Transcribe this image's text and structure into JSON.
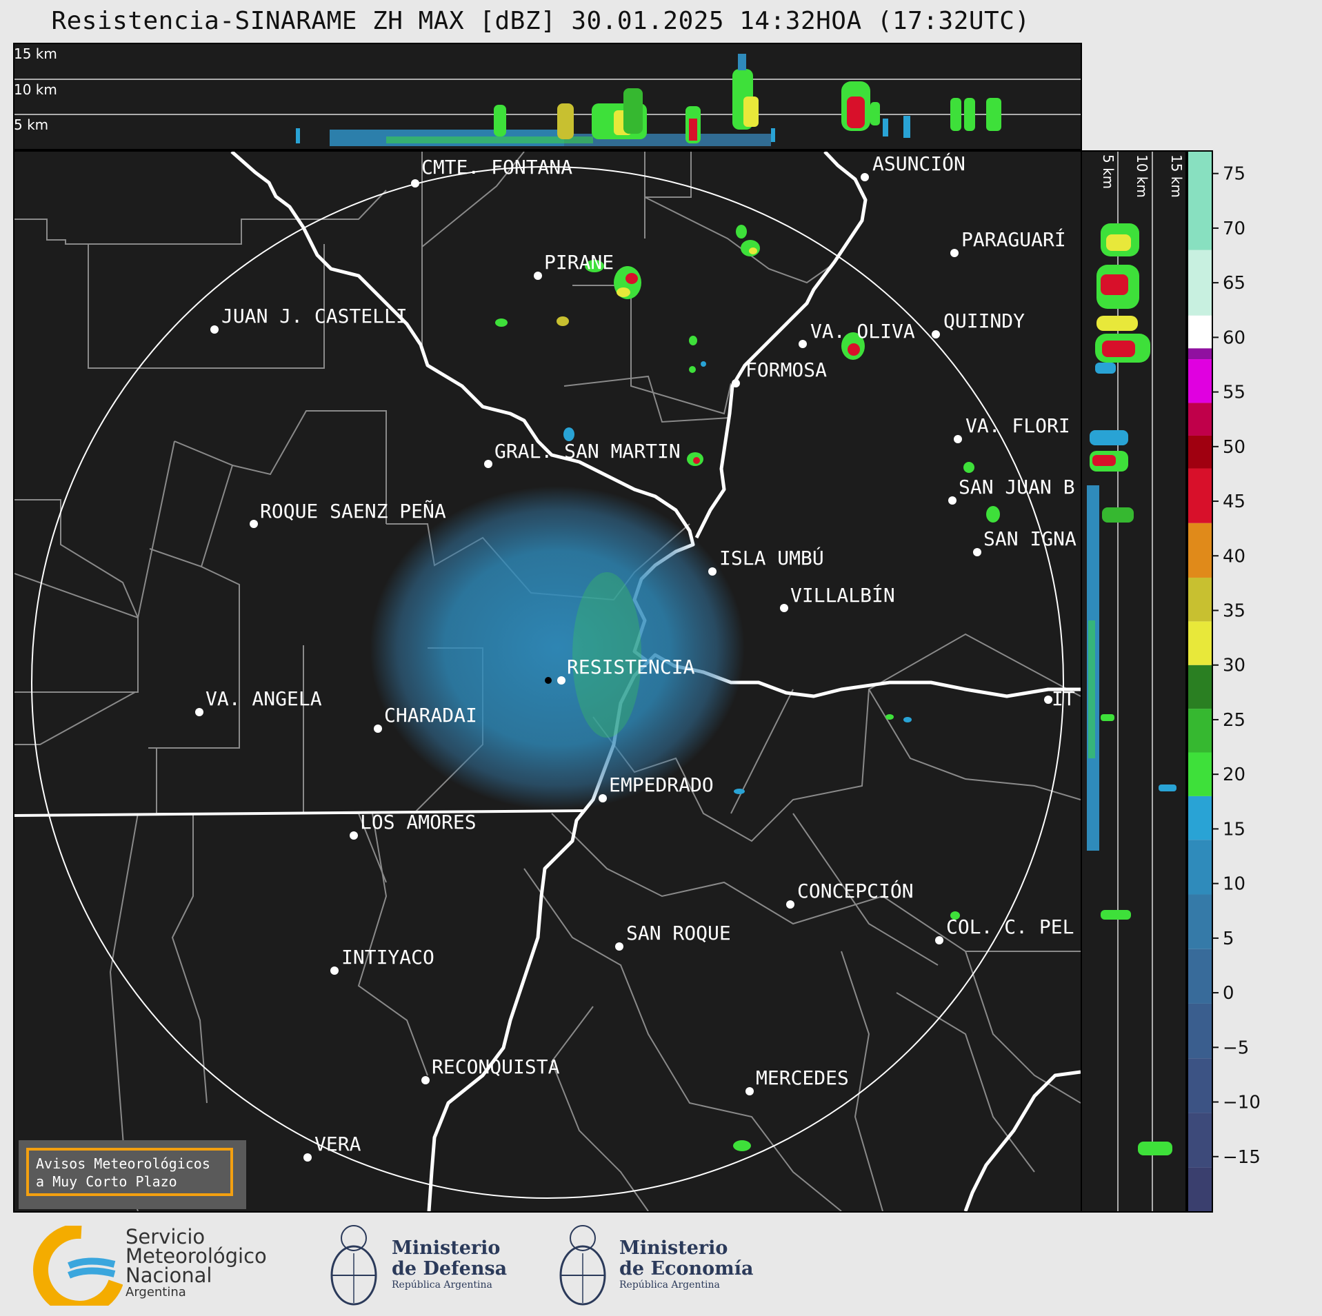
{
  "title": "Resistencia-SINARAME ZH MAX [dBZ] 30.01.2025 14:32HOA (17:32UTC)",
  "altitude_labels": [
    "15 km",
    "10 km",
    "5 km"
  ],
  "side_altitude_labels": [
    "5 km",
    "10 km",
    "15 km"
  ],
  "colorbar": {
    "ticks": [
      "75",
      "70",
      "65",
      "60",
      "55",
      "50",
      "45",
      "40",
      "35",
      "30",
      "25",
      "20",
      "15",
      "10",
      "5",
      "0",
      "−5",
      "−10",
      "−15"
    ],
    "min": -20,
    "max": 77,
    "bands": [
      {
        "from": -20,
        "to": -16,
        "color": "#3a3f6e"
      },
      {
        "from": -16,
        "to": -11,
        "color": "#3d4a7a"
      },
      {
        "from": -11,
        "to": -6,
        "color": "#3c5384"
      },
      {
        "from": -6,
        "to": -1,
        "color": "#3a5e8e"
      },
      {
        "from": -1,
        "to": 4,
        "color": "#386b9a"
      },
      {
        "from": 4,
        "to": 9,
        "color": "#357aa8"
      },
      {
        "from": 9,
        "to": 14,
        "color": "#2f8bbb"
      },
      {
        "from": 14,
        "to": 18,
        "color": "#29a3d5"
      },
      {
        "from": 18,
        "to": 22,
        "color": "#3ee03a"
      },
      {
        "from": 22,
        "to": 26,
        "color": "#36b830"
      },
      {
        "from": 26,
        "to": 30,
        "color": "#2a7f22"
      },
      {
        "from": 30,
        "to": 34,
        "color": "#e8e83a"
      },
      {
        "from": 34,
        "to": 38,
        "color": "#c8c030"
      },
      {
        "from": 38,
        "to": 43,
        "color": "#e08a1a"
      },
      {
        "from": 43,
        "to": 48,
        "color": "#d8102a"
      },
      {
        "from": 48,
        "to": 51,
        "color": "#a00010"
      },
      {
        "from": 51,
        "to": 54,
        "color": "#c0004a"
      },
      {
        "from": 54,
        "to": 58,
        "color": "#e000e0"
      },
      {
        "from": 58,
        "to": 59,
        "color": "#9010a0"
      },
      {
        "from": 59,
        "to": 62,
        "color": "#ffffff"
      },
      {
        "from": 62,
        "to": 68,
        "color": "#c8f0e0"
      },
      {
        "from": 68,
        "to": 77,
        "color": "#88e0c0"
      }
    ]
  },
  "cities": [
    {
      "name": "CMTE. FONTANA"
    },
    {
      "name": "ASUNCIÓN"
    },
    {
      "name": "PARAGUARÍ"
    },
    {
      "name": "PIRANE"
    },
    {
      "name": "JUAN J. CASTELLI"
    },
    {
      "name": "VA. OLIVA"
    },
    {
      "name": "QUIINDY"
    },
    {
      "name": "FORMOSA"
    },
    {
      "name": "VA. FLORI"
    },
    {
      "name": "GRAL. SAN MARTIN"
    },
    {
      "name": "SAN JUAN B"
    },
    {
      "name": "ROQUE SAENZ PEÑA"
    },
    {
      "name": "SAN IGNA"
    },
    {
      "name": "ISLA UMBÚ"
    },
    {
      "name": "VILLALBÍN"
    },
    {
      "name": "RESISTENCIA"
    },
    {
      "name": "VA. ANGELA"
    },
    {
      "name": "CHARADAI"
    },
    {
      "name": "IT"
    },
    {
      "name": "EMPEDRADO"
    },
    {
      "name": "LOS AMORES"
    },
    {
      "name": "CONCEPCIÓN"
    },
    {
      "name": "SAN ROQUE"
    },
    {
      "name": "COL. C. PEL"
    },
    {
      "name": "INTIYACO"
    },
    {
      "name": "RECONQUISTA"
    },
    {
      "name": "MERCEDES"
    },
    {
      "name": "VERA"
    }
  ],
  "aviso": "Avisos Meteorológicos\na Muy Corto Plazo",
  "footer": {
    "smn": {
      "line1": "Servicio",
      "line2": "Meteorológico",
      "line3": "Nacional",
      "sub": "Argentina"
    },
    "defensa": {
      "line1": "Ministerio",
      "line2": "de Defensa",
      "sub": "República Argentina"
    },
    "economia": {
      "line1": "Ministerio",
      "line2": "de Economía",
      "sub": "República Argentina"
    }
  }
}
